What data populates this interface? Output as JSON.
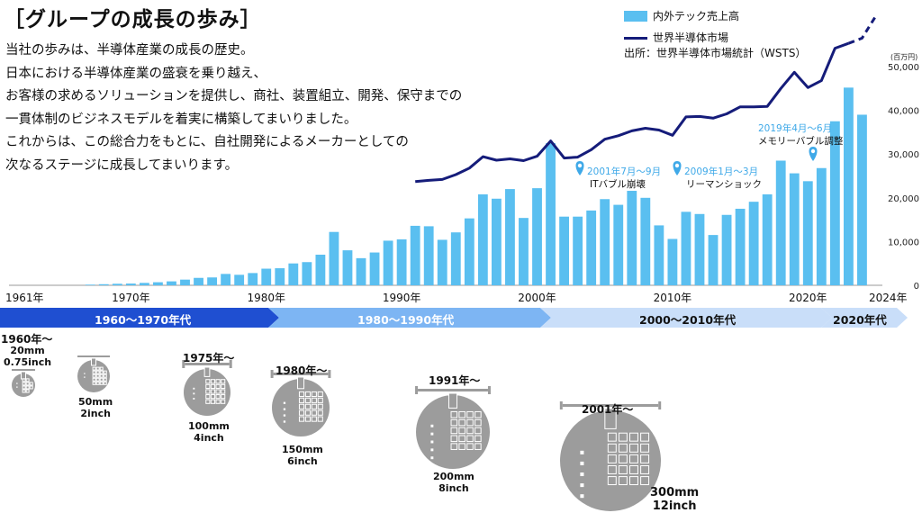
{
  "page": {
    "title": "［グループの成長の歩み］",
    "description": [
      "当社の歩みは、半導体産業の成長の歴史。",
      "日本における半導体産業の盛衰を乗り越え、",
      "お客様の求めるソリューションを提供し、商社、装置組立、開発、保守までの",
      "一貫体制のビジネスモデルを着実に構築してまいりました。",
      "これからは、この総合力をもとに、自社開発によるメーカーとしての",
      "次なるステージに成長してまいります。"
    ]
  },
  "legend": {
    "bar_label": "内外テック売上高",
    "line_label": "世界半導体市場",
    "source": "出所：世界半導体市場統計（WSTS）"
  },
  "colors": {
    "bar": "#5ABFF0",
    "line": "#151C7A",
    "era1": "#1F4FD1",
    "era2": "#7DB5F3",
    "era3": "#C9DEF9",
    "wafer": "#9C9C9C"
  },
  "chart_data": {
    "type": "bar",
    "title": "",
    "y_unit": "(百万円)",
    "ylim": [
      0,
      50000
    ],
    "y_ticks": [
      "0",
      "10,000",
      "20,000",
      "30,000",
      "40,000",
      "50,000"
    ],
    "x_tick_labels": [
      "1961年",
      "1970年",
      "1980年",
      "1990年",
      "2000年",
      "2010年",
      "2020年",
      "2024年"
    ],
    "x_tick_years": [
      1961,
      1970,
      1980,
      1990,
      2000,
      2010,
      2020,
      2024
    ],
    "series": [
      {
        "name": "内外テック売上高",
        "kind": "bar",
        "x": [
          1967,
          1968,
          1969,
          1970,
          1971,
          1972,
          1973,
          1974,
          1975,
          1976,
          1977,
          1978,
          1979,
          1980,
          1981,
          1982,
          1983,
          1984,
          1985,
          1986,
          1987,
          1988,
          1989,
          1990,
          1991,
          1992,
          1993,
          1994,
          1995,
          1996,
          1997,
          1998,
          1999,
          2000,
          2001,
          2002,
          2003,
          2004,
          2005,
          2006,
          2007,
          2008,
          2009,
          2010,
          2011,
          2012,
          2013,
          2014,
          2015,
          2016,
          2017,
          2018,
          2019,
          2020,
          2021,
          2022,
          2023,
          2024
        ],
        "values": [
          150,
          250,
          350,
          400,
          550,
          700,
          900,
          1300,
          1700,
          1800,
          2600,
          2400,
          2800,
          3800,
          3900,
          5000,
          5300,
          7000,
          12200,
          8000,
          6200,
          7500,
          10200,
          10500,
          13600,
          13500,
          10400,
          12100,
          15300,
          20800,
          19800,
          22000,
          15400,
          22200,
          32500,
          15700,
          15700,
          17100,
          19700,
          18400,
          21600,
          20000,
          13700,
          10600,
          16800,
          16300,
          11500,
          16100,
          17500,
          19100,
          20800,
          28500,
          25600,
          23800,
          26800,
          37500,
          45200,
          39000
        ]
      },
      {
        "name": "世界半導体市場",
        "kind": "line",
        "x": [
          1991,
          1992,
          1993,
          1994,
          1995,
          1996,
          1997,
          1998,
          1999,
          2000,
          2001,
          2002,
          2003,
          2004,
          2005,
          2006,
          2007,
          2008,
          2009,
          2010,
          2011,
          2012,
          2013,
          2014,
          2015,
          2016,
          2017,
          2018,
          2019,
          2020,
          2021,
          2022,
          2023
        ],
        "values": [
          23700,
          24000,
          24200,
          25300,
          26800,
          29400,
          28600,
          28900,
          28500,
          29500,
          33000,
          29100,
          29300,
          31000,
          33400,
          34200,
          35300,
          35900,
          35500,
          34300,
          38500,
          38600,
          38200,
          39200,
          40800,
          40800,
          40900,
          45000,
          48700,
          45200,
          46800,
          54200,
          55300
        ],
        "projection": {
          "x": [
            2023,
            2024,
            2025
          ],
          "values": [
            55300,
            56500,
            61500
          ]
        }
      }
    ],
    "annotations": [
      {
        "label": "2001年7月～9月",
        "sub": "ITバブル崩壊",
        "x": 2001
      },
      {
        "label": "2009年1月～3月",
        "sub": "リーマンショック",
        "x": 2009
      },
      {
        "label": "2019年4月～6月",
        "sub": "メモリーバブル調整",
        "x": 2019
      }
    ]
  },
  "eras": [
    {
      "label": "1960～1970年代"
    },
    {
      "label": "1980～1990年代"
    },
    {
      "label": "2000～2010年代"
    },
    {
      "label": "2020年代"
    }
  ],
  "wafers": [
    {
      "year": "1960年～",
      "size": "20mm",
      "inch": "0.75inch"
    },
    {
      "year": "",
      "size": "50mm",
      "inch": "2inch"
    },
    {
      "year": "1975年～",
      "size": "100mm",
      "inch": "4inch"
    },
    {
      "year": "1980年～",
      "size": "150mm",
      "inch": "6inch"
    },
    {
      "year": "1991年～",
      "size": "200mm",
      "inch": "8inch"
    },
    {
      "year": "2001年～",
      "size": "300mm",
      "inch": "12inch"
    }
  ]
}
